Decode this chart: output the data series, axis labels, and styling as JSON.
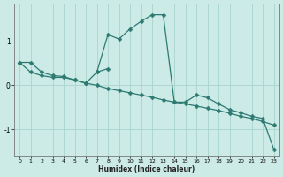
{
  "xlabel": "Humidex (Indice chaleur)",
  "bg_color": "#cceae6",
  "line_color": "#2d7a72",
  "grid_color": "#aad4ce",
  "xlim": [
    -0.5,
    23.5
  ],
  "ylim": [
    -1.6,
    1.85
  ],
  "yticks": [
    -1,
    0,
    1
  ],
  "xticks": [
    0,
    1,
    2,
    3,
    4,
    5,
    6,
    7,
    8,
    9,
    10,
    11,
    12,
    13,
    14,
    15,
    16,
    17,
    18,
    19,
    20,
    21,
    22,
    23
  ],
  "series1_x": [
    0,
    1,
    2,
    3,
    4,
    5,
    6,
    7,
    8,
    9,
    10,
    11,
    12,
    13,
    14,
    15,
    16,
    17,
    18,
    19,
    20,
    21,
    22,
    23
  ],
  "series1_y": [
    0.52,
    0.52,
    0.3,
    0.22,
    0.2,
    0.12,
    0.05,
    0.0,
    -0.07,
    -0.12,
    -0.17,
    -0.22,
    -0.27,
    -0.33,
    -0.38,
    -0.42,
    -0.47,
    -0.52,
    -0.57,
    -0.63,
    -0.7,
    -0.75,
    -0.82,
    -0.9
  ],
  "series2_x": [
    0,
    1,
    2,
    3,
    4,
    5,
    6,
    7,
    8,
    9,
    10,
    11,
    12,
    13,
    14,
    15,
    16,
    17,
    18,
    19,
    20,
    21,
    22,
    23
  ],
  "series2_y": [
    0.52,
    0.3,
    0.22,
    0.18,
    0.18,
    0.12,
    0.05,
    0.3,
    1.15,
    1.05,
    1.28,
    1.45,
    1.6,
    1.6,
    -0.38,
    -0.38,
    -0.22,
    -0.28,
    -0.42,
    -0.55,
    -0.62,
    -0.7,
    -0.75,
    -1.45
  ],
  "series3_x": [
    7,
    8
  ],
  "series3_y": [
    0.3,
    0.38
  ],
  "marker_size": 2.5,
  "linewidth": 0.9
}
